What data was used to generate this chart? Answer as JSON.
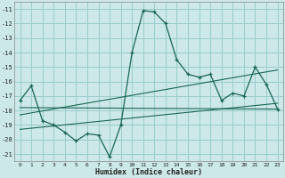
{
  "xlabel": "Humidex (Indice chaleur)",
  "bg_color": "#cce8e8",
  "grid_color": "#99cccc",
  "line_color": "#1a6655",
  "xlim": [
    -0.5,
    23.5
  ],
  "ylim": [
    -21.5,
    -10.5
  ],
  "xticks": [
    0,
    1,
    2,
    3,
    4,
    5,
    6,
    7,
    8,
    9,
    10,
    11,
    12,
    13,
    14,
    15,
    16,
    17,
    18,
    19,
    20,
    21,
    22,
    23
  ],
  "yticks": [
    -11,
    -12,
    -13,
    -14,
    -15,
    -16,
    -17,
    -18,
    -19,
    -20,
    -21
  ],
  "main_x": [
    0,
    1,
    2,
    3,
    4,
    5,
    6,
    7,
    8,
    9,
    10,
    11,
    12,
    13,
    14,
    15,
    16,
    17,
    18,
    19,
    20,
    21,
    22,
    23
  ],
  "main_y": [
    -17.3,
    -16.3,
    -18.7,
    -19.0,
    -19.5,
    -20.1,
    -19.6,
    -19.7,
    -21.2,
    -19.0,
    -14.0,
    -11.1,
    -11.2,
    -12.0,
    -14.5,
    -15.5,
    -15.7,
    -15.5,
    -17.3,
    -16.8,
    -17.0,
    -15.0,
    -16.2,
    -17.9
  ],
  "line1_x": [
    0,
    23
  ],
  "line1_y": [
    -17.8,
    -17.9
  ],
  "line2_x": [
    0,
    23
  ],
  "line2_y": [
    -18.3,
    -15.2
  ],
  "line3_x": [
    0,
    23
  ],
  "line3_y": [
    -19.3,
    -17.5
  ]
}
